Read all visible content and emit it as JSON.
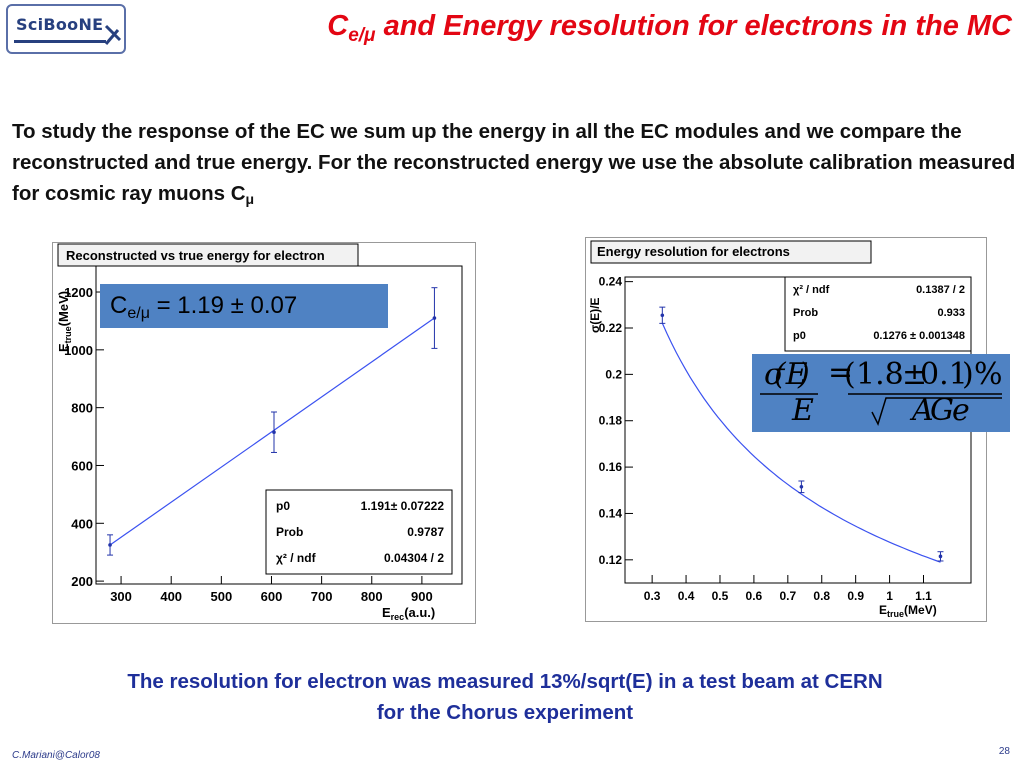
{
  "header": {
    "logo_text": "SciBooNE",
    "title_main": "C",
    "title_sub": "e/μ",
    "title_rest": " and Energy resolution for electrons in the MC"
  },
  "intro": {
    "text": "To study the response of the EC we sum up the energy in all the EC modules and we compare the reconstructed and true energy. For the reconstructed energy we use the absolute calibration measured for cosmic ray muons C",
    "sub": "μ"
  },
  "calibration": {
    "label": "C",
    "sub": "e/μ",
    "value": " = 1.19 ± 0.07"
  },
  "formula_image": "resolution-formula",
  "chart_data": [
    {
      "type": "scatter",
      "title": "Reconstructed vs true energy for electron",
      "xlabel_main": "E",
      "xlabel_sub": "rec",
      "xlabel_unit": "(a.u.)",
      "ylabel_main": "E",
      "ylabel_sub": "true",
      "ylabel_unit": "(MeV)",
      "xlim": [
        250,
        980
      ],
      "ylim": [
        190,
        1290
      ],
      "xticks": [
        300,
        400,
        500,
        600,
        700,
        800,
        900
      ],
      "yticks": [
        200,
        400,
        600,
        800,
        1000,
        1200
      ],
      "points": [
        {
          "x": 278,
          "y": 325,
          "err": 35
        },
        {
          "x": 605,
          "y": 715,
          "err": 70
        },
        {
          "x": 925,
          "y": 1110,
          "err": 105
        }
      ],
      "fit_line": {
        "x": [
          278,
          925
        ],
        "y": [
          325,
          1110
        ]
      },
      "stats": [
        {
          "label": "p0",
          "value": "1.191± 0.07222"
        },
        {
          "label": "Prob",
          "value": "0.9787"
        },
        {
          "label": "χ² / ndf",
          "value": "0.04304 / 2"
        }
      ],
      "line_color": "#3b52f0"
    },
    {
      "type": "scatter",
      "title": "Energy resolution for electrons",
      "xlabel_main": "E",
      "xlabel_sub": "true",
      "xlabel_unit": "(MeV)",
      "ylabel": "σ(E)/E",
      "xlim": [
        0.22,
        1.24
      ],
      "ylim": [
        0.11,
        0.242
      ],
      "xticks": [
        0.3,
        0.4,
        0.5,
        0.6,
        0.7,
        0.8,
        0.9,
        1,
        1.1
      ],
      "yticks": [
        0.12,
        0.14,
        0.16,
        0.18,
        0.2,
        0.22,
        0.24
      ],
      "points": [
        {
          "x": 0.33,
          "y": 0.2255,
          "err": 0.0035
        },
        {
          "x": 0.74,
          "y": 0.1515,
          "err": 0.0025
        },
        {
          "x": 1.15,
          "y": 0.1215,
          "err": 0.002
        }
      ],
      "fit_p0": 0.1276,
      "fit_range": [
        0.33,
        1.15
      ],
      "stats": [
        {
          "label": "χ² / ndf",
          "value": "0.1387 / 2"
        },
        {
          "label": "Prob",
          "value": "0.933"
        },
        {
          "label": "p0",
          "value": "0.1276 ± 0.001348"
        }
      ],
      "line_color": "#3b52f0"
    }
  ],
  "note": {
    "line1": "The resolution for electron was measured 13%/sqrt(E) in a test beam at CERN",
    "line2": "for the Chorus experiment"
  },
  "footer": {
    "author": "C.Mariani@Calor08",
    "page": "28"
  }
}
